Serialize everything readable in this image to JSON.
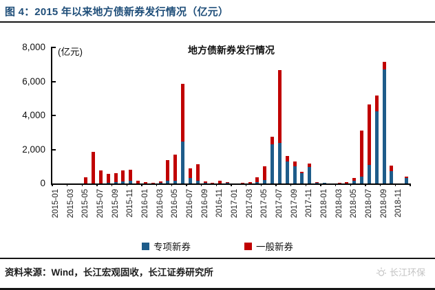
{
  "header": {
    "title": "图 4：2015 年以来地方债新券发行情况（亿元）"
  },
  "colors": {
    "title_blue": "#1f4e79",
    "special_blue": "#1e5c8a",
    "general_red": "#c00000",
    "axis_black": "#000000",
    "watermark_gray": "#c3c3c3"
  },
  "chart_data": {
    "type": "bar",
    "stacked": true,
    "title": "地方债新券发行情况",
    "unit_label": "(亿元)",
    "xlabel": "",
    "ylabel": "",
    "ylim": [
      0,
      8000
    ],
    "y_ticks": [
      0,
      2000,
      4000,
      6000,
      8000
    ],
    "y_tick_labels": [
      "0",
      "2,000",
      "4,000",
      "6,000",
      "8,000"
    ],
    "grid": false,
    "legend_position": "bottom",
    "categories": [
      "2015-01",
      "2015-02",
      "2015-03",
      "2015-04",
      "2015-05",
      "2015-06",
      "2015-07",
      "2015-08",
      "2015-09",
      "2015-10",
      "2015-11",
      "2015-12",
      "2016-01",
      "2016-02",
      "2016-03",
      "2016-04",
      "2016-05",
      "2016-06",
      "2016-07",
      "2016-08",
      "2016-09",
      "2016-10",
      "2016-11",
      "2016-12",
      "2017-01",
      "2017-02",
      "2017-03",
      "2017-04",
      "2017-05",
      "2017-06",
      "2017-07",
      "2017-08",
      "2017-09",
      "2017-10",
      "2017-11",
      "2017-12",
      "2018-01",
      "2018-02",
      "2018-03",
      "2018-04",
      "2018-05",
      "2018-06",
      "2018-07",
      "2018-08",
      "2018-09",
      "2018-10",
      "2018-11",
      "2018-12"
    ],
    "x_tick_labels": [
      "2015-01",
      "2015-03",
      "2015-05",
      "2015-07",
      "2015-09",
      "2015-11",
      "2016-01",
      "2016-03",
      "2016-05",
      "2016-07",
      "2016-09",
      "2016-11",
      "2017-01",
      "2017-03",
      "2017-05",
      "2017-07",
      "2017-09",
      "2017-11",
      "2018-01",
      "2018-03",
      "2018-05",
      "2018-07",
      "2018-09",
      "2018-11"
    ],
    "series": [
      {
        "name": "专项新券",
        "color": "#1e5c8a",
        "values": [
          0,
          0,
          0,
          0,
          0,
          0,
          0,
          60,
          80,
          140,
          160,
          0,
          0,
          0,
          30,
          150,
          170,
          2480,
          340,
          160,
          40,
          0,
          0,
          30,
          0,
          0,
          0,
          100,
          200,
          2300,
          2400,
          1300,
          1000,
          600,
          970,
          50,
          40,
          0,
          30,
          0,
          150,
          400,
          1080,
          4230,
          6700,
          740,
          0,
          330
        ]
      },
      {
        "name": "一般新券",
        "color": "#c00000",
        "values": [
          0,
          0,
          0,
          0,
          350,
          1870,
          780,
          520,
          540,
          640,
          660,
          150,
          80,
          40,
          90,
          1220,
          1530,
          3380,
          560,
          990,
          80,
          60,
          180,
          60,
          0,
          40,
          80,
          250,
          830,
          450,
          4260,
          310,
          280,
          80,
          200,
          50,
          0,
          0,
          30,
          70,
          190,
          2730,
          3560,
          930,
          460,
          300,
          0,
          60
        ]
      }
    ]
  },
  "legend": {
    "items": [
      {
        "label": "专项新券",
        "color": "#1e5c8a"
      },
      {
        "label": "一般新券",
        "color": "#c00000"
      }
    ]
  },
  "footer": {
    "source": "资料来源：Wind，长江宏观固收，长江证券研究所"
  },
  "watermark": {
    "text": "长江环保"
  }
}
